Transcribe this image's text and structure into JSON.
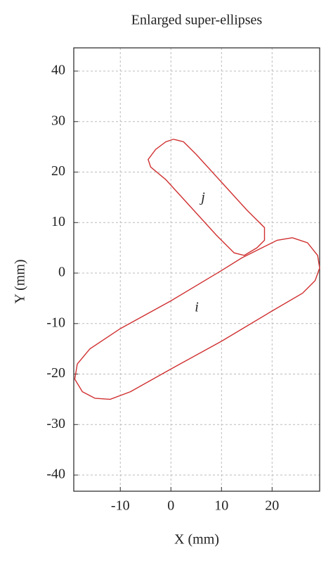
{
  "chart_data": {
    "type": "line",
    "title": "Enlarged super-ellipses",
    "xlabel": "X (mm)",
    "ylabel": "Y (mm)",
    "xlim": [
      -19.2,
      29.4
    ],
    "ylim": [
      -43.2,
      44.6
    ],
    "xticks": [
      -10,
      0,
      10,
      20
    ],
    "yticks": [
      -40,
      -30,
      -20,
      -10,
      0,
      10,
      20,
      30,
      40
    ],
    "grid": true,
    "annotations": [
      "i",
      "j"
    ],
    "series": [
      {
        "color": "#d03030",
        "x": [
          24,
          27,
          29,
          29.4,
          28.5,
          26,
          20,
          10,
          0,
          -8,
          -12,
          -15,
          -17.5,
          -19,
          -18.5,
          -16,
          -10,
          0,
          10,
          14,
          18,
          21,
          24
        ],
        "y": [
          7,
          6,
          3.5,
          1,
          -1.5,
          -4,
          -7.5,
          -13.5,
          -19,
          -23.5,
          -25,
          -24.8,
          -23.5,
          -21,
          -18,
          -15,
          -11,
          -5.5,
          0.5,
          3,
          5,
          6.5,
          7
        ]
      },
      {
        "color": "#d03030",
        "x": [
          0.5,
          2.5,
          5,
          10,
          15,
          18.5,
          18.5,
          17,
          14.5,
          12.5,
          9,
          4,
          -1,
          -4,
          -4.5,
          -3,
          -1,
          0.5
        ],
        "y": [
          26.5,
          26,
          23.5,
          18,
          12.5,
          9,
          6.5,
          5,
          3.5,
          4,
          7.5,
          13,
          18.5,
          21,
          22.5,
          24.5,
          26,
          26.5
        ]
      }
    ]
  }
}
